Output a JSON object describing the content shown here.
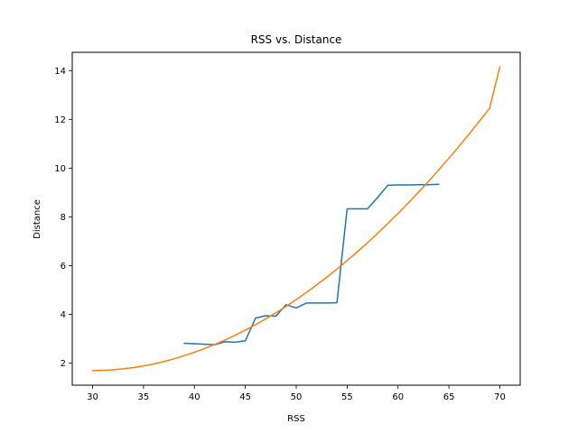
{
  "chart_data": {
    "type": "line",
    "title": "RSS vs. Distance",
    "xlabel": "RSS",
    "ylabel": "Distance",
    "xlim": [
      28.0,
      72.0
    ],
    "ylim": [
      1.1,
      14.75
    ],
    "xticks": [
      30,
      35,
      40,
      45,
      50,
      55,
      60,
      65,
      70
    ],
    "yticks": [
      2,
      4,
      6,
      8,
      10,
      12,
      14
    ],
    "grid": false,
    "series": [
      {
        "color": "#1f77b4",
        "x": [
          39,
          42,
          43,
          44,
          45,
          46,
          47,
          48,
          49,
          50,
          51,
          52,
          53,
          54,
          55,
          56,
          57,
          58,
          59,
          60,
          61,
          62,
          63,
          64
        ],
        "y": [
          2.82,
          2.76,
          2.88,
          2.86,
          2.92,
          3.85,
          3.95,
          3.93,
          4.4,
          4.27,
          4.47,
          4.47,
          4.47,
          4.48,
          8.33,
          8.33,
          8.33,
          8.8,
          9.3,
          9.31,
          9.31,
          9.32,
          9.32,
          9.34
        ]
      },
      {
        "color": "#ff7f0e",
        "x": [
          30,
          31,
          32,
          33,
          34,
          35,
          36,
          37,
          38,
          39,
          40,
          41,
          42,
          43,
          44,
          45,
          46,
          47,
          48,
          49,
          50,
          51,
          52,
          53,
          54,
          55,
          56,
          57,
          58,
          59,
          60,
          61,
          62,
          63,
          64,
          65,
          66,
          67,
          68,
          69,
          70
        ],
        "y": [
          1.7,
          1.71,
          1.73,
          1.77,
          1.82,
          1.89,
          1.97,
          2.07,
          2.18,
          2.31,
          2.45,
          2.6,
          2.77,
          2.95,
          3.15,
          3.36,
          3.58,
          3.82,
          4.07,
          4.33,
          4.61,
          4.9,
          5.21,
          5.53,
          5.86,
          6.21,
          6.57,
          6.94,
          7.33,
          7.73,
          8.14,
          8.57,
          9.01,
          9.46,
          9.93,
          10.41,
          10.9,
          11.41,
          11.93,
          12.46,
          14.15
        ]
      }
    ]
  }
}
